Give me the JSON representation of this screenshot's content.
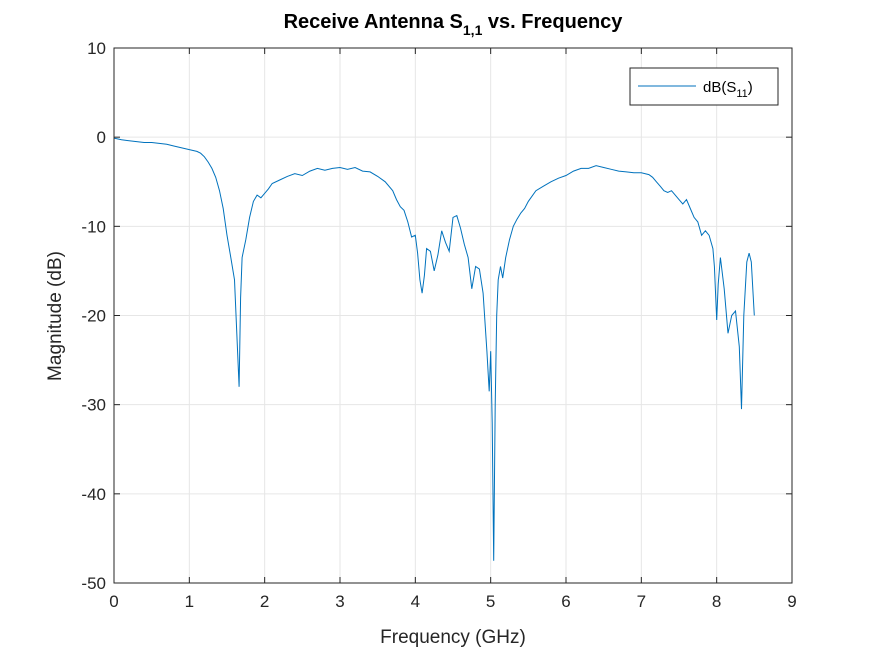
{
  "chart_data": {
    "type": "line",
    "title": {
      "main": "Receive Antenna S",
      "subscript": "1,1",
      "suffix": " vs. Frequency"
    },
    "xlabel": "Frequency (GHz)",
    "ylabel": "Magnitude (dB)",
    "xlim": [
      0,
      9
    ],
    "ylim": [
      -50,
      10
    ],
    "xticks": [
      0,
      1,
      2,
      3,
      4,
      5,
      6,
      7,
      8,
      9
    ],
    "yticks": [
      -50,
      -40,
      -30,
      -20,
      -10,
      0,
      10
    ],
    "grid": true,
    "legend_position": "top-right",
    "colors": {
      "series": "#0072BD",
      "grid": "#e6e6e6",
      "axes": "#262626"
    },
    "series": [
      {
        "legend": {
          "prefix": "dB(S",
          "subscript": "11",
          "suffix": ")"
        },
        "x": [
          0,
          0.1,
          0.2,
          0.3,
          0.4,
          0.5,
          0.6,
          0.7,
          0.8,
          0.9,
          1.0,
          1.05,
          1.1,
          1.15,
          1.2,
          1.25,
          1.3,
          1.35,
          1.4,
          1.45,
          1.5,
          1.55,
          1.6,
          1.63,
          1.66,
          1.68,
          1.7,
          1.75,
          1.8,
          1.85,
          1.9,
          1.95,
          2.0,
          2.05,
          2.1,
          2.2,
          2.3,
          2.4,
          2.5,
          2.6,
          2.7,
          2.8,
          2.9,
          3.0,
          3.1,
          3.2,
          3.3,
          3.4,
          3.5,
          3.6,
          3.7,
          3.75,
          3.8,
          3.85,
          3.9,
          3.95,
          4.0,
          4.03,
          4.06,
          4.09,
          4.12,
          4.15,
          4.2,
          4.25,
          4.3,
          4.35,
          4.4,
          4.45,
          4.5,
          4.55,
          4.6,
          4.65,
          4.7,
          4.75,
          4.8,
          4.85,
          4.9,
          4.95,
          4.98,
          5.0,
          5.02,
          5.04,
          5.06,
          5.08,
          5.1,
          5.13,
          5.16,
          5.2,
          5.25,
          5.3,
          5.35,
          5.4,
          5.45,
          5.5,
          5.6,
          5.7,
          5.8,
          5.9,
          6.0,
          6.1,
          6.2,
          6.3,
          6.4,
          6.5,
          6.6,
          6.7,
          6.8,
          6.9,
          7.0,
          7.1,
          7.15,
          7.2,
          7.25,
          7.3,
          7.35,
          7.4,
          7.45,
          7.5,
          7.55,
          7.6,
          7.65,
          7.7,
          7.75,
          7.8,
          7.85,
          7.9,
          7.95,
          7.97,
          8.0,
          8.02,
          8.05,
          8.1,
          8.15,
          8.2,
          8.25,
          8.3,
          8.33,
          8.36,
          8.4,
          8.43,
          8.46,
          8.5
        ],
        "y": [
          -0.1,
          -0.3,
          -0.4,
          -0.5,
          -0.6,
          -0.6,
          -0.7,
          -0.8,
          -1.0,
          -1.2,
          -1.4,
          -1.5,
          -1.6,
          -1.8,
          -2.2,
          -2.8,
          -3.5,
          -4.5,
          -6.0,
          -8.0,
          -11.0,
          -13.5,
          -16.0,
          -22.0,
          -28.0,
          -18.0,
          -13.5,
          -11.5,
          -9.0,
          -7.2,
          -6.5,
          -6.8,
          -6.3,
          -5.8,
          -5.2,
          -4.8,
          -4.4,
          -4.1,
          -4.3,
          -3.8,
          -3.5,
          -3.7,
          -3.5,
          -3.4,
          -3.6,
          -3.4,
          -3.8,
          -3.9,
          -4.4,
          -5.0,
          -6.0,
          -7.0,
          -7.8,
          -8.2,
          -9.5,
          -11.2,
          -11.0,
          -13.0,
          -16.0,
          -17.5,
          -15.5,
          -12.5,
          -12.8,
          -15.0,
          -13.2,
          -10.5,
          -11.8,
          -12.8,
          -9.0,
          -8.8,
          -10.2,
          -12.0,
          -13.5,
          -17.0,
          -14.5,
          -14.8,
          -17.5,
          -24.0,
          -28.5,
          -24.0,
          -32.0,
          -47.5,
          -30.0,
          -20.0,
          -16.0,
          -14.5,
          -15.8,
          -13.5,
          -11.5,
          -10.0,
          -9.2,
          -8.5,
          -8.0,
          -7.2,
          -6.0,
          -5.5,
          -5.0,
          -4.6,
          -4.3,
          -3.8,
          -3.5,
          -3.5,
          -3.2,
          -3.4,
          -3.6,
          -3.8,
          -3.9,
          -4.0,
          -4.0,
          -4.2,
          -4.5,
          -5.0,
          -5.5,
          -6.0,
          -6.2,
          -6.0,
          -6.5,
          -7.0,
          -7.5,
          -7.0,
          -8.0,
          -9.0,
          -9.5,
          -11.0,
          -10.5,
          -11.0,
          -12.5,
          -14.5,
          -20.5,
          -16.5,
          -13.5,
          -17.0,
          -22.0,
          -20.0,
          -19.5,
          -23.5,
          -30.5,
          -20.0,
          -14.0,
          -13.0,
          -14.0,
          -20.0
        ]
      }
    ]
  }
}
